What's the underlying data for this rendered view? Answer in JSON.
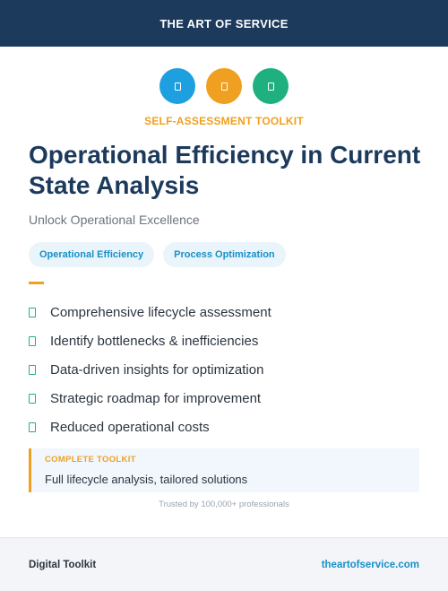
{
  "header": {
    "brand": "THE ART OF SERVICE",
    "bg": "#1c3a5c"
  },
  "icon_row": [
    {
      "icon": "document-icon",
      "color": "#1ea0e0"
    },
    {
      "icon": "document-icon",
      "color": "#f0a020"
    },
    {
      "icon": "document-icon",
      "color": "#1fb080"
    }
  ],
  "kicker": "SELF-ASSESSMENT TOOLKIT",
  "title": "Operational Efficiency in Current State Analysis",
  "subtitle": "Unlock Operational Excellence",
  "tags": [
    "Operational Efficiency",
    "Process Optimization"
  ],
  "features": [
    "Comprehensive lifecycle assessment",
    "Identify bottlenecks & inefficiencies",
    "Data-driven insights for optimization",
    "Strategic roadmap for improvement",
    "Reduced operational costs"
  ],
  "callout": {
    "label": "COMPLETE TOOLKIT",
    "text": "Full lifecycle analysis, tailored solutions"
  },
  "trusted": "Trusted by 100,000+ professionals",
  "footer": {
    "left": "Digital Toolkit",
    "right": "theartofservice.com"
  },
  "colors": {
    "accent": "#f0a020",
    "navy": "#1c3a5c",
    "link": "#1790c8",
    "check": "#1fb080"
  }
}
